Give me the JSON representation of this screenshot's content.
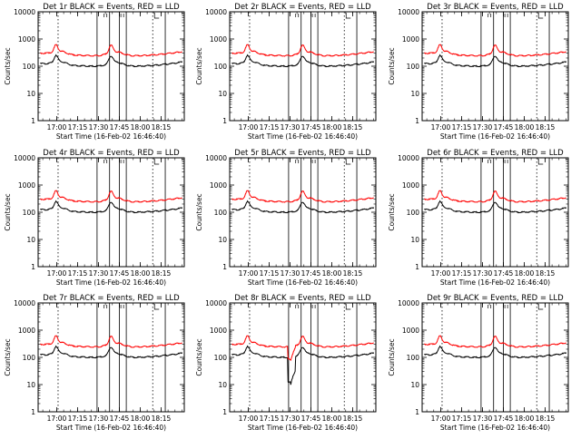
{
  "chart_data": [
    {
      "type": "line",
      "title": "Det 1r BLACK = Events, RED = LLD",
      "xlabel": "Start Time (16-Feb-02 16:46:40)",
      "ylabel": "Counts/sec",
      "x_tick_labels": [
        "17:00",
        "17:15",
        "17:30",
        "17:45",
        "18:00",
        "18:15"
      ],
      "y_tick_labels": [
        "1",
        "10",
        "100",
        "1000",
        "10000"
      ],
      "y_scale": "log",
      "ylim": [
        1,
        10000
      ],
      "xlim": [
        "16:46:40",
        "18:31:40"
      ],
      "series": [
        {
          "name": "BLACK = Events",
          "color": "#000000"
        },
        {
          "name": "RED = LLD",
          "color": "#ff0000"
        }
      ],
      "attenuator_marks": [
        "17:01",
        "17:29",
        "17:38",
        "17:45",
        "17:50",
        "18:09",
        "18:18"
      ],
      "anomaly": false
    },
    {
      "type": "line",
      "title": "Det 2r BLACK = Events, RED = LLD",
      "xlabel": "Start Time (16-Feb-02 16:46:40)",
      "ylabel": "Counts/sec",
      "x_tick_labels": [
        "17:00",
        "17:15",
        "17:30",
        "17:45",
        "18:00",
        "18:15"
      ],
      "y_tick_labels": [
        "1",
        "10",
        "100",
        "1000",
        "10000"
      ],
      "y_scale": "log",
      "ylim": [
        1,
        10000
      ],
      "xlim": [
        "16:46:40",
        "18:31:40"
      ],
      "series": [
        {
          "name": "BLACK = Events",
          "color": "#000000"
        },
        {
          "name": "RED = LLD",
          "color": "#ff0000"
        }
      ],
      "attenuator_marks": [
        "17:01",
        "17:29",
        "17:38",
        "17:45",
        "17:50",
        "18:09",
        "18:18"
      ],
      "anomaly": false
    },
    {
      "type": "line",
      "title": "Det 3r BLACK = Events, RED = LLD",
      "xlabel": "Start Time (16-Feb-02 16:46:40)",
      "ylabel": "Counts/sec",
      "x_tick_labels": [
        "17:00",
        "17:15",
        "17:30",
        "17:45",
        "18:00",
        "18:15"
      ],
      "y_tick_labels": [
        "1",
        "10",
        "100",
        "1000",
        "10000"
      ],
      "y_scale": "log",
      "ylim": [
        1,
        10000
      ],
      "xlim": [
        "16:46:40",
        "18:31:40"
      ],
      "series": [
        {
          "name": "BLACK = Events",
          "color": "#000000"
        },
        {
          "name": "RED = LLD",
          "color": "#ff0000"
        }
      ],
      "attenuator_marks": [
        "17:01",
        "17:29",
        "17:38",
        "17:45",
        "17:50",
        "18:09",
        "18:18"
      ],
      "anomaly": false
    },
    {
      "type": "line",
      "title": "Det 4r BLACK = Events, RED = LLD",
      "xlabel": "Start Time (16-Feb-02 16:46:40)",
      "ylabel": "Counts/sec",
      "x_tick_labels": [
        "17:00",
        "17:15",
        "17:30",
        "17:45",
        "18:00",
        "18:15"
      ],
      "y_tick_labels": [
        "1",
        "10",
        "100",
        "1000",
        "10000"
      ],
      "y_scale": "log",
      "ylim": [
        1,
        10000
      ],
      "xlim": [
        "16:46:40",
        "18:31:40"
      ],
      "series": [
        {
          "name": "BLACK = Events",
          "color": "#000000"
        },
        {
          "name": "RED = LLD",
          "color": "#ff0000"
        }
      ],
      "attenuator_marks": [
        "17:01",
        "17:29",
        "17:38",
        "17:45",
        "17:50",
        "18:09",
        "18:18"
      ],
      "anomaly": false
    },
    {
      "type": "line",
      "title": "Det 5r BLACK = Events, RED = LLD",
      "xlabel": "Start Time (16-Feb-02 16:46:40)",
      "ylabel": "Counts/sec",
      "x_tick_labels": [
        "17:00",
        "17:15",
        "17:30",
        "17:45",
        "18:00",
        "18:15"
      ],
      "y_tick_labels": [
        "1",
        "10",
        "100",
        "1000",
        "10000"
      ],
      "y_scale": "log",
      "ylim": [
        1,
        10000
      ],
      "xlim": [
        "16:46:40",
        "18:31:40"
      ],
      "series": [
        {
          "name": "BLACK = Events",
          "color": "#000000"
        },
        {
          "name": "RED = LLD",
          "color": "#ff0000"
        }
      ],
      "attenuator_marks": [
        "17:01",
        "17:29",
        "17:38",
        "17:45",
        "17:50",
        "18:09",
        "18:18"
      ],
      "anomaly": false
    },
    {
      "type": "line",
      "title": "Det 6r BLACK = Events, RED = LLD",
      "xlabel": "Start Time (16-Feb-02 16:46:40)",
      "ylabel": "Counts/sec",
      "x_tick_labels": [
        "17:00",
        "17:15",
        "17:30",
        "17:45",
        "18:00",
        "18:15"
      ],
      "y_tick_labels": [
        "1",
        "10",
        "100",
        "1000",
        "10000"
      ],
      "y_scale": "log",
      "ylim": [
        1,
        10000
      ],
      "xlim": [
        "16:46:40",
        "18:31:40"
      ],
      "series": [
        {
          "name": "BLACK = Events",
          "color": "#000000"
        },
        {
          "name": "RED = LLD",
          "color": "#ff0000"
        }
      ],
      "attenuator_marks": [
        "17:01",
        "17:29",
        "17:38",
        "17:45",
        "17:50",
        "18:09",
        "18:18"
      ],
      "anomaly": false
    },
    {
      "type": "line",
      "title": "Det 7r BLACK = Events, RED = LLD",
      "xlabel": "Start Time (16-Feb-02 16:46:40)",
      "ylabel": "Counts/sec",
      "x_tick_labels": [
        "17:00",
        "17:15",
        "17:30",
        "17:45",
        "18:00",
        "18:15"
      ],
      "y_tick_labels": [
        "1",
        "10",
        "100",
        "1000",
        "10000"
      ],
      "y_scale": "log",
      "ylim": [
        1,
        10000
      ],
      "xlim": [
        "16:46:40",
        "18:31:40"
      ],
      "series": [
        {
          "name": "BLACK = Events",
          "color": "#000000"
        },
        {
          "name": "RED = LLD",
          "color": "#ff0000"
        }
      ],
      "attenuator_marks": [
        "17:01",
        "17:29",
        "17:38",
        "17:45",
        "17:50",
        "18:09",
        "18:18"
      ],
      "anomaly": false
    },
    {
      "type": "line",
      "title": "Det 8r BLACK = Events, RED = LLD",
      "xlabel": "Start Time (16-Feb-02 16:46:40)",
      "ylabel": "Counts/sec",
      "x_tick_labels": [
        "17:00",
        "17:15",
        "17:30",
        "17:45",
        "18:00",
        "18:15"
      ],
      "y_tick_labels": [
        "1",
        "10",
        "100",
        "1000",
        "10000"
      ],
      "y_scale": "log",
      "ylim": [
        1,
        10000
      ],
      "xlim": [
        "16:46:40",
        "18:31:40"
      ],
      "series": [
        {
          "name": "BLACK = Events",
          "color": "#000000"
        },
        {
          "name": "RED = LLD",
          "color": "#ff0000"
        }
      ],
      "attenuator_marks": [
        "17:01",
        "17:29",
        "17:38",
        "17:45",
        "17:50",
        "18:09",
        "18:18"
      ],
      "anomaly": true
    },
    {
      "type": "line",
      "title": "Det 9r BLACK = Events, RED = LLD",
      "xlabel": "Start Time (16-Feb-02 16:46:40)",
      "ylabel": "Counts/sec",
      "x_tick_labels": [
        "17:00",
        "17:15",
        "17:30",
        "17:45",
        "18:00",
        "18:15"
      ],
      "y_tick_labels": [
        "1",
        "10",
        "100",
        "1000",
        "10000"
      ],
      "y_scale": "log",
      "ylim": [
        1,
        10000
      ],
      "xlim": [
        "16:46:40",
        "18:31:40"
      ],
      "series": [
        {
          "name": "BLACK = Events",
          "color": "#000000"
        },
        {
          "name": "RED = LLD",
          "color": "#ff0000"
        }
      ],
      "attenuator_marks": [
        "17:01",
        "17:29",
        "17:38",
        "17:45",
        "17:50",
        "18:09",
        "18:18"
      ],
      "anomaly": false
    }
  ]
}
